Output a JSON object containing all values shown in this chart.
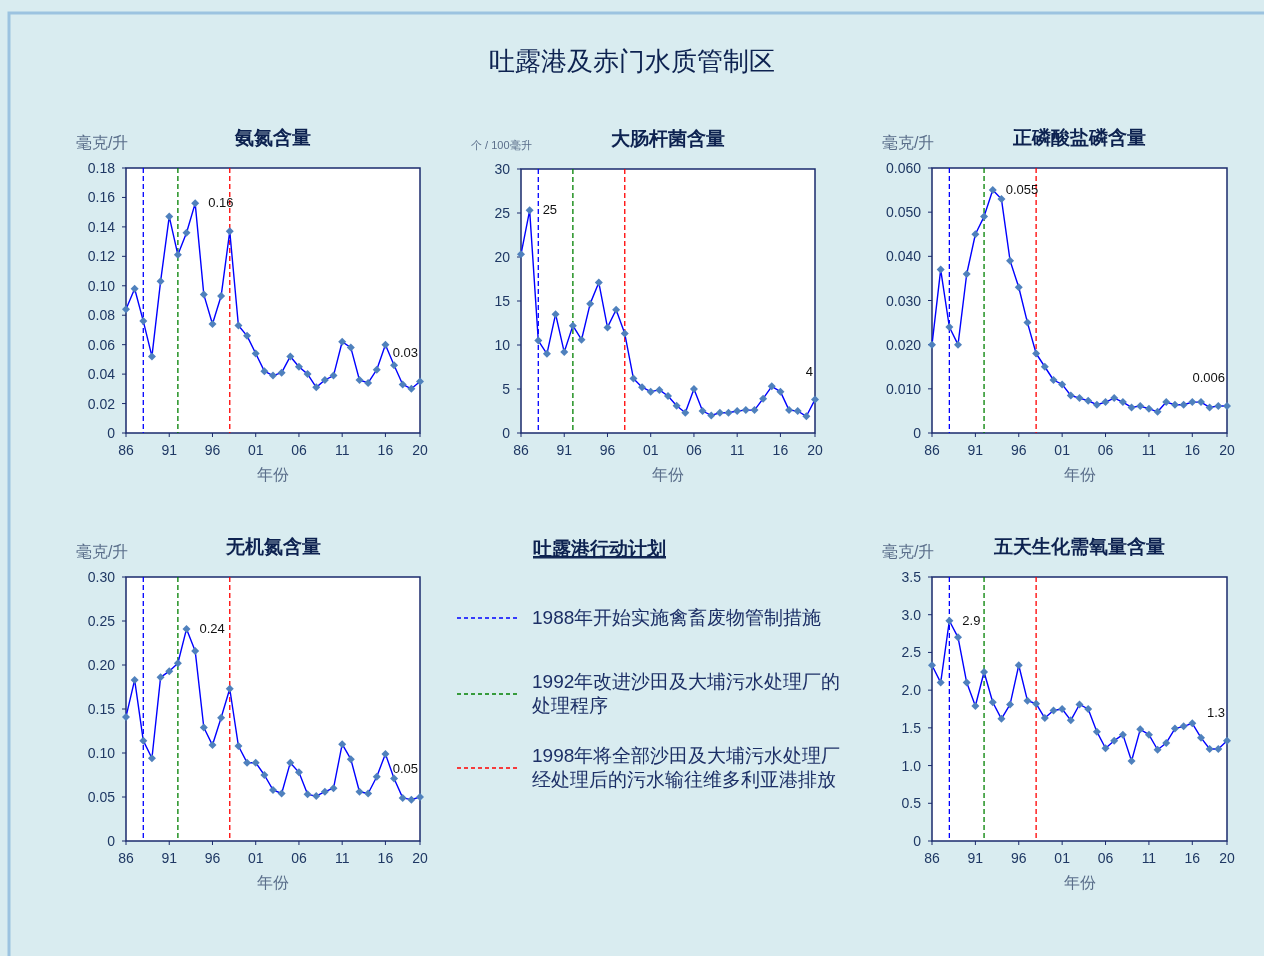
{
  "chart_data": [
    {
      "type": "other",
      "title": "吐露港及赤门水质管制区"
    },
    {
      "type": "line",
      "title": "氨氮含量",
      "ylabel": "毫克/升",
      "xlabel": "年份",
      "marker": "diamond",
      "line_style": "solid",
      "x": [
        1986,
        1987,
        1988,
        1989,
        1990,
        1991,
        1992,
        1993,
        1994,
        1995,
        1996,
        1997,
        1998,
        1999,
        2000,
        2001,
        2002,
        2003,
        2004,
        2005,
        2006,
        2007,
        2008,
        2009,
        2010,
        2011,
        2012,
        2013,
        2014,
        2015,
        2016,
        2017,
        2018,
        2019,
        2020
      ],
      "xlim": [
        1986,
        2020
      ],
      "xticks": [
        {
          "value": 1986,
          "label": "86"
        },
        {
          "value": 1991,
          "label": "91"
        },
        {
          "value": 1996,
          "label": "96"
        },
        {
          "value": 2001,
          "label": "01"
        },
        {
          "value": 2006,
          "label": "06"
        },
        {
          "value": 2011,
          "label": "11"
        },
        {
          "value": 2016,
          "label": "16"
        },
        {
          "value": 2020,
          "label": "20"
        }
      ],
      "ylim": [
        0,
        0.18
      ],
      "yticks": [
        0,
        0.02,
        0.04,
        0.06,
        0.08,
        {
          "value": 0.1,
          "label": "0.10"
        },
        0.12,
        0.14,
        0.16,
        0.18
      ],
      "series": [
        {
          "color": "#0000ff",
          "values": [
            0.084,
            0.098,
            0.076,
            0.052,
            0.103,
            0.147,
            0.121,
            0.136,
            0.156,
            0.094,
            0.074,
            0.093,
            0.137,
            0.073,
            0.066,
            0.054,
            0.042,
            0.039,
            0.041,
            0.052,
            0.045,
            0.04,
            0.031,
            0.036,
            0.039,
            0.062,
            0.058,
            0.036,
            0.034,
            0.043,
            0.06,
            0.046,
            0.033,
            0.03,
            0.035
          ],
          "value_labels": [
            null,
            null,
            null,
            null,
            null,
            null,
            null,
            null,
            "0.16",
            null,
            null,
            null,
            null,
            null,
            null,
            null,
            null,
            null,
            null,
            null,
            null,
            null,
            null,
            null,
            null,
            null,
            null,
            null,
            null,
            null,
            null,
            null,
            null,
            null,
            "0.03"
          ]
        }
      ],
      "ref_lines": [
        {
          "axis": "x",
          "value": 1988,
          "color": "#0000ff",
          "line_style": "dashed"
        },
        {
          "axis": "x",
          "value": 1992,
          "color": "#008000",
          "line_style": "dashed"
        },
        {
          "axis": "x",
          "value": 1998,
          "color": "#ff0000",
          "line_style": "dashed"
        }
      ]
    },
    {
      "type": "line",
      "title": "大肠杆菌含量",
      "ylabel": "个 / 100毫升",
      "xlabel": "年份",
      "marker": "diamond",
      "line_style": "solid",
      "x": [
        1986,
        1987,
        1988,
        1989,
        1990,
        1991,
        1992,
        1993,
        1994,
        1995,
        1996,
        1997,
        1998,
        1999,
        2000,
        2001,
        2002,
        2003,
        2004,
        2005,
        2006,
        2007,
        2008,
        2009,
        2010,
        2011,
        2012,
        2013,
        2014,
        2015,
        2016,
        2017,
        2018,
        2019,
        2020
      ],
      "xlim": [
        1986,
        2020
      ],
      "xticks": [
        {
          "value": 1986,
          "label": "86"
        },
        {
          "value": 1991,
          "label": "91"
        },
        {
          "value": 1996,
          "label": "96"
        },
        {
          "value": 2001,
          "label": "01"
        },
        {
          "value": 2006,
          "label": "06"
        },
        {
          "value": 2011,
          "label": "11"
        },
        {
          "value": 2016,
          "label": "16"
        },
        {
          "value": 2020,
          "label": "20"
        }
      ],
      "ylim": [
        0,
        30
      ],
      "yticks": [
        0,
        5,
        10,
        15,
        20,
        25,
        30
      ],
      "series": [
        {
          "color": "#0000ff",
          "values": [
            20.3,
            25.3,
            10.5,
            9.0,
            13.5,
            9.2,
            12.2,
            10.6,
            14.7,
            17.1,
            12.0,
            14.0,
            11.3,
            6.2,
            5.2,
            4.7,
            4.9,
            4.2,
            3.1,
            2.3,
            5.0,
            2.5,
            2.0,
            2.3,
            2.3,
            2.5,
            2.6,
            2.6,
            3.9,
            5.3,
            4.7,
            2.6,
            2.5,
            1.9,
            3.8
          ],
          "value_labels": [
            null,
            "25",
            null,
            null,
            null,
            null,
            null,
            null,
            null,
            null,
            null,
            null,
            null,
            null,
            null,
            null,
            null,
            null,
            null,
            null,
            null,
            null,
            null,
            null,
            null,
            null,
            null,
            null,
            null,
            null,
            null,
            null,
            null,
            null,
            "4"
          ]
        }
      ],
      "ref_lines": [
        {
          "axis": "x",
          "value": 1988,
          "color": "#0000ff",
          "line_style": "dashed"
        },
        {
          "axis": "x",
          "value": 1992,
          "color": "#008000",
          "line_style": "dashed"
        },
        {
          "axis": "x",
          "value": 1998,
          "color": "#ff0000",
          "line_style": "dashed"
        }
      ]
    },
    {
      "type": "line",
      "title": "正磷酸盐磷含量",
      "ylabel": "毫克/升",
      "xlabel": "年份",
      "marker": "diamond",
      "line_style": "solid",
      "x": [
        1986,
        1987,
        1988,
        1989,
        1990,
        1991,
        1992,
        1993,
        1994,
        1995,
        1996,
        1997,
        1998,
        1999,
        2000,
        2001,
        2002,
        2003,
        2004,
        2005,
        2006,
        2007,
        2008,
        2009,
        2010,
        2011,
        2012,
        2013,
        2014,
        2015,
        2016,
        2017,
        2018,
        2019,
        2020
      ],
      "xlim": [
        1986,
        2020
      ],
      "xticks": [
        {
          "value": 1986,
          "label": "86"
        },
        {
          "value": 1991,
          "label": "91"
        },
        {
          "value": 1996,
          "label": "96"
        },
        {
          "value": 2001,
          "label": "01"
        },
        {
          "value": 2006,
          "label": "06"
        },
        {
          "value": 2011,
          "label": "11"
        },
        {
          "value": 2016,
          "label": "16"
        },
        {
          "value": 2020,
          "label": "20"
        }
      ],
      "ylim": [
        0,
        0.06
      ],
      "yticks": [
        0,
        {
          "value": 0.01,
          "label": "0.010"
        },
        {
          "value": 0.02,
          "label": "0.020"
        },
        {
          "value": 0.03,
          "label": "0.030"
        },
        {
          "value": 0.04,
          "label": "0.040"
        },
        {
          "value": 0.05,
          "label": "0.050"
        },
        {
          "value": 0.06,
          "label": "0.060"
        }
      ],
      "series": [
        {
          "color": "#0000ff",
          "values": [
            0.02,
            0.037,
            0.024,
            0.02,
            0.036,
            0.045,
            0.049,
            0.055,
            0.053,
            0.039,
            0.033,
            0.025,
            0.018,
            0.015,
            0.012,
            0.011,
            0.0085,
            0.0079,
            0.0073,
            0.0064,
            0.007,
            0.0079,
            0.007,
            0.0058,
            0.0061,
            0.0055,
            0.0048,
            0.007,
            0.0064,
            0.0064,
            0.007,
            0.007,
            0.0058,
            0.0061,
            0.0061
          ],
          "value_labels": [
            null,
            null,
            null,
            null,
            null,
            null,
            null,
            "0.055",
            null,
            null,
            null,
            null,
            null,
            null,
            null,
            null,
            null,
            null,
            null,
            null,
            null,
            null,
            null,
            null,
            null,
            null,
            null,
            null,
            null,
            null,
            null,
            null,
            null,
            null,
            "0.006"
          ]
        }
      ],
      "ref_lines": [
        {
          "axis": "x",
          "value": 1988,
          "color": "#0000ff",
          "line_style": "dashed"
        },
        {
          "axis": "x",
          "value": 1992,
          "color": "#008000",
          "line_style": "dashed"
        },
        {
          "axis": "x",
          "value": 1998,
          "color": "#ff0000",
          "line_style": "dashed"
        }
      ]
    },
    {
      "type": "line",
      "title": "无机氮含量",
      "ylabel": "毫克/升",
      "xlabel": "年份",
      "marker": "diamond",
      "line_style": "solid",
      "x": [
        1986,
        1987,
        1988,
        1989,
        1990,
        1991,
        1992,
        1993,
        1994,
        1995,
        1996,
        1997,
        1998,
        1999,
        2000,
        2001,
        2002,
        2003,
        2004,
        2005,
        2006,
        2007,
        2008,
        2009,
        2010,
        2011,
        2012,
        2013,
        2014,
        2015,
        2016,
        2017,
        2018,
        2019,
        2020
      ],
      "xlim": [
        1986,
        2020
      ],
      "xticks": [
        {
          "value": 1986,
          "label": "86"
        },
        {
          "value": 1991,
          "label": "91"
        },
        {
          "value": 1996,
          "label": "96"
        },
        {
          "value": 2001,
          "label": "01"
        },
        {
          "value": 2006,
          "label": "06"
        },
        {
          "value": 2011,
          "label": "11"
        },
        {
          "value": 2016,
          "label": "16"
        },
        {
          "value": 2020,
          "label": "20"
        }
      ],
      "ylim": [
        0,
        0.3
      ],
      "yticks": [
        0,
        0.05,
        {
          "value": 0.1,
          "label": "0.10"
        },
        0.15,
        {
          "value": 0.2,
          "label": "0.20"
        },
        0.25,
        {
          "value": 0.3,
          "label": "0.30"
        }
      ],
      "series": [
        {
          "color": "#0000ff",
          "values": [
            0.141,
            0.183,
            0.114,
            0.094,
            0.186,
            0.193,
            0.202,
            0.241,
            0.216,
            0.129,
            0.109,
            0.14,
            0.173,
            0.108,
            0.089,
            0.089,
            0.075,
            0.058,
            0.054,
            0.089,
            0.078,
            0.053,
            0.051,
            0.056,
            0.06,
            0.11,
            0.093,
            0.056,
            0.054,
            0.073,
            0.099,
            0.071,
            0.049,
            0.047,
            0.05
          ],
          "value_labels": [
            null,
            null,
            null,
            null,
            null,
            null,
            null,
            "0.24",
            null,
            null,
            null,
            null,
            null,
            null,
            null,
            null,
            null,
            null,
            null,
            null,
            null,
            null,
            null,
            null,
            null,
            null,
            null,
            null,
            null,
            null,
            null,
            null,
            null,
            null,
            "0.05"
          ]
        }
      ],
      "ref_lines": [
        {
          "axis": "x",
          "value": 1988,
          "color": "#0000ff",
          "line_style": "dashed"
        },
        {
          "axis": "x",
          "value": 1992,
          "color": "#008000",
          "line_style": "dashed"
        },
        {
          "axis": "x",
          "value": 1998,
          "color": "#ff0000",
          "line_style": "dashed"
        }
      ]
    },
    {
      "type": "other",
      "title": "吐露港行动计划",
      "colors": [
        "#0000ff",
        "#008000",
        "#ff0000"
      ],
      "annotations": [
        "1988年开始实施禽畜废物管制措施",
        "1992年改进沙田及大埔污水处理厂的处理程序",
        "1998年将全部沙田及大埔污水处理厂经处理后的污水输往维多利亚港排放"
      ]
    },
    {
      "type": "line",
      "title": "五天生化需氧量含量",
      "ylabel": "毫克/升",
      "xlabel": "年份",
      "marker": "diamond",
      "line_style": "solid",
      "x": [
        1986,
        1987,
        1988,
        1989,
        1990,
        1991,
        1992,
        1993,
        1994,
        1995,
        1996,
        1997,
        1998,
        1999,
        2000,
        2001,
        2002,
        2003,
        2004,
        2005,
        2006,
        2007,
        2008,
        2009,
        2010,
        2011,
        2012,
        2013,
        2014,
        2015,
        2016,
        2017,
        2018,
        2019,
        2020
      ],
      "xlim": [
        1986,
        2020
      ],
      "xticks": [
        {
          "value": 1986,
          "label": "86"
        },
        {
          "value": 1991,
          "label": "91"
        },
        {
          "value": 1996,
          "label": "96"
        },
        {
          "value": 2001,
          "label": "01"
        },
        {
          "value": 2006,
          "label": "06"
        },
        {
          "value": 2011,
          "label": "11"
        },
        {
          "value": 2016,
          "label": "16"
        },
        {
          "value": 2020,
          "label": "20"
        }
      ],
      "ylim": [
        0,
        3.5
      ],
      "yticks": [
        0,
        0.5,
        {
          "value": 1,
          "label": "1.0"
        },
        1.5,
        {
          "value": 2,
          "label": "2.0"
        },
        2.5,
        {
          "value": 3,
          "label": "3.0"
        },
        3.5
      ],
      "series": [
        {
          "color": "#0000ff",
          "values": [
            2.33,
            2.1,
            2.92,
            2.7,
            2.1,
            1.79,
            2.24,
            1.84,
            1.62,
            1.81,
            2.33,
            1.86,
            1.82,
            1.63,
            1.73,
            1.75,
            1.6,
            1.81,
            1.75,
            1.45,
            1.23,
            1.33,
            1.41,
            1.06,
            1.48,
            1.41,
            1.21,
            1.3,
            1.49,
            1.52,
            1.56,
            1.37,
            1.22,
            1.22,
            1.33
          ],
          "value_labels": [
            null,
            null,
            "2.9",
            null,
            null,
            null,
            null,
            null,
            null,
            null,
            null,
            null,
            null,
            null,
            null,
            null,
            null,
            null,
            null,
            null,
            null,
            null,
            null,
            null,
            null,
            null,
            null,
            null,
            null,
            null,
            null,
            null,
            null,
            null,
            "1.3"
          ]
        }
      ],
      "ref_lines": [
        {
          "axis": "x",
          "value": 1988,
          "color": "#0000ff",
          "line_style": "dashed"
        },
        {
          "axis": "x",
          "value": 1992,
          "color": "#008000",
          "line_style": "dashed"
        },
        {
          "axis": "x",
          "value": 1998,
          "color": "#ff0000",
          "line_style": "dashed"
        }
      ]
    }
  ]
}
